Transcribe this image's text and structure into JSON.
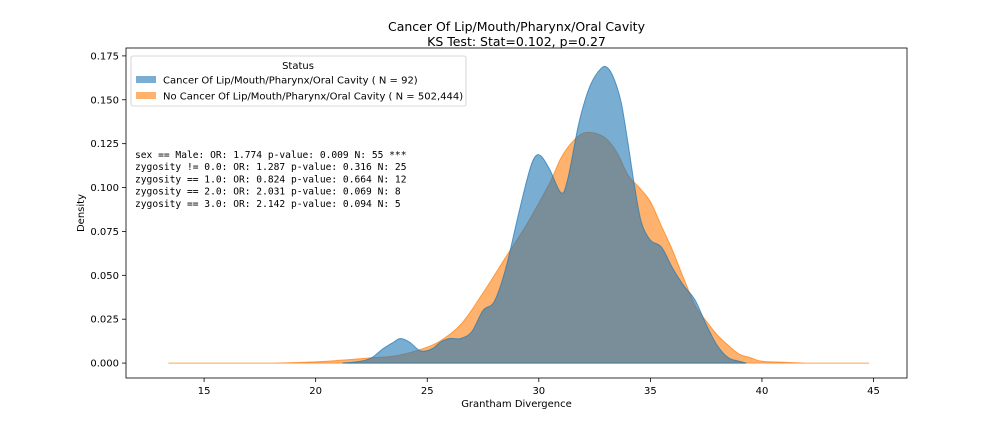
{
  "chart_data": {
    "type": "area",
    "title": "Cancer Of Lip/Mouth/Pharynx/Oral Cavity",
    "subtitle": "KS Test: Stat=0.102, p=0.27",
    "xlabel": "Grantham Divergence",
    "ylabel": "Density",
    "xlim": [
      11.5,
      46.5
    ],
    "ylim": [
      -0.0085,
      0.1795
    ],
    "xticks": [
      15,
      20,
      25,
      30,
      35,
      40,
      45
    ],
    "yticks": [
      0.0,
      0.025,
      0.05,
      0.075,
      0.1,
      0.125,
      0.15,
      0.175
    ],
    "ytick_labels": [
      "0.000",
      "0.025",
      "0.050",
      "0.075",
      "0.100",
      "0.125",
      "0.150",
      "0.175"
    ],
    "grid": false,
    "legend": {
      "title": "Status",
      "placement": "top-left",
      "entries": [
        "Cancer Of Lip/Mouth/Pharynx/Oral Cavity ( N = 92)",
        "No Cancer Of Lip/Mouth/Pharynx/Oral Cavity ( N = 502,444)"
      ]
    },
    "annotations": [
      "sex == Male: OR: 1.774 p-value: 0.009 N: 55 ***",
      "zygosity != 0.0: OR: 1.287 p-value: 0.316 N: 25",
      "zygosity == 1.0: OR: 0.824 p-value: 0.664 N: 12",
      "zygosity == 2.0: OR: 2.031 p-value: 0.069 N: 8",
      "zygosity == 3.0: OR: 2.142 p-value: 0.094 N: 5"
    ],
    "series": [
      {
        "name": "Cancer Of Lip/Mouth/Pharynx/Oral Cavity ( N = 92)",
        "color": "#1f77b4",
        "opacity": 0.6,
        "x": [
          21.2,
          22.0,
          22.5,
          23.0,
          23.5,
          23.8,
          24.2,
          24.7,
          25.2,
          25.6,
          26.0,
          26.5,
          27.0,
          27.5,
          28.0,
          28.5,
          29.0,
          29.5,
          29.8,
          30.1,
          30.5,
          31.0,
          31.3,
          31.8,
          32.3,
          32.8,
          33.1,
          33.4,
          33.7,
          34.0,
          34.3,
          34.6,
          35.0,
          35.5,
          36.0,
          36.5,
          37.0,
          37.5,
          38.0,
          38.5,
          39.0,
          39.3
        ],
        "y": [
          0.0,
          0.001,
          0.003,
          0.008,
          0.012,
          0.014,
          0.012,
          0.007,
          0.008,
          0.012,
          0.014,
          0.014,
          0.018,
          0.03,
          0.035,
          0.053,
          0.08,
          0.106,
          0.117,
          0.118,
          0.11,
          0.097,
          0.105,
          0.137,
          0.158,
          0.168,
          0.168,
          0.161,
          0.148,
          0.125,
          0.1,
          0.08,
          0.07,
          0.066,
          0.054,
          0.044,
          0.036,
          0.022,
          0.01,
          0.003,
          0.001,
          0.0
        ]
      },
      {
        "name": "No Cancer Of Lip/Mouth/Pharynx/Oral Cavity ( N = 502,444)",
        "color": "#ff7f0e",
        "opacity": 0.6,
        "x": [
          13.4,
          16.0,
          18.0,
          19.5,
          20.5,
          21.5,
          22.5,
          23.5,
          24.5,
          25.5,
          26.5,
          27.5,
          28.5,
          29.5,
          30.5,
          31.0,
          31.5,
          32.0,
          32.5,
          33.0,
          33.5,
          34.0,
          34.5,
          35.0,
          35.5,
          36.0,
          36.5,
          37.0,
          37.5,
          38.0,
          38.5,
          39.0,
          39.5,
          40.0,
          41.0,
          42.0,
          43.0,
          44.8
        ],
        "y": [
          0.0,
          0.0,
          0.0,
          0.0005,
          0.001,
          0.002,
          0.003,
          0.004,
          0.007,
          0.012,
          0.022,
          0.04,
          0.06,
          0.08,
          0.103,
          0.117,
          0.126,
          0.131,
          0.131,
          0.128,
          0.12,
          0.107,
          0.1,
          0.092,
          0.078,
          0.064,
          0.048,
          0.033,
          0.024,
          0.016,
          0.01,
          0.005,
          0.003,
          0.001,
          0.0005,
          0.0,
          0.0,
          0.0
        ]
      }
    ]
  }
}
